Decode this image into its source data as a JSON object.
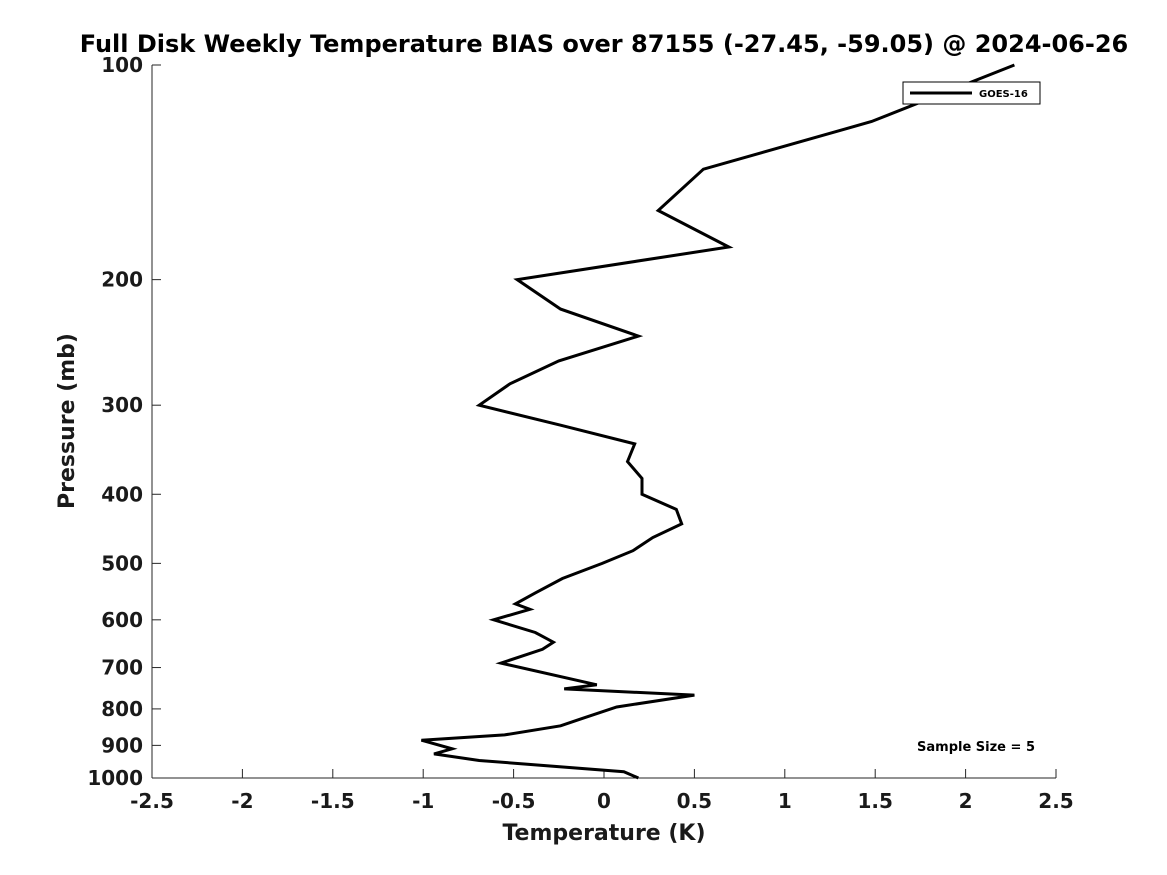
{
  "chart_data": {
    "type": "line",
    "title": "Full Disk Weekly Temperature BIAS over 87155 (-27.45, -59.05) @ 2024-06-26",
    "xlabel": "Temperature (K)",
    "ylabel": "Pressure (mb)",
    "xlim": [
      -2.5,
      2.5
    ],
    "ylim": [
      100,
      1000
    ],
    "yscale": "log",
    "y_reversed": true,
    "grid": false,
    "legend_position": "top-right",
    "x_ticks": [
      {
        "value": -2.5,
        "label": "-2.5"
      },
      {
        "value": -2,
        "label": "-2"
      },
      {
        "value": -1.5,
        "label": "-1.5"
      },
      {
        "value": -1,
        "label": "-1"
      },
      {
        "value": -0.5,
        "label": "-0.5"
      },
      {
        "value": 0,
        "label": "0"
      },
      {
        "value": 0.5,
        "label": "0.5"
      },
      {
        "value": 1,
        "label": "1"
      },
      {
        "value": 1.5,
        "label": "1.5"
      },
      {
        "value": 2,
        "label": "2"
      },
      {
        "value": 2.5,
        "label": "2.5"
      }
    ],
    "y_ticks": [
      {
        "value": 100,
        "label": "100"
      },
      {
        "value": 200,
        "label": "200"
      },
      {
        "value": 300,
        "label": "300"
      },
      {
        "value": 400,
        "label": "400"
      },
      {
        "value": 500,
        "label": "500"
      },
      {
        "value": 600,
        "label": "600"
      },
      {
        "value": 700,
        "label": "700"
      },
      {
        "value": 800,
        "label": "800"
      },
      {
        "value": 900,
        "label": "900"
      },
      {
        "value": 1000,
        "label": "1000"
      }
    ],
    "series": [
      {
        "name": "GOES-16",
        "color": "#000000",
        "points": [
          {
            "x": 2.27,
            "p": 100
          },
          {
            "x": 1.48,
            "p": 120
          },
          {
            "x": 0.55,
            "p": 140
          },
          {
            "x": 0.3,
            "p": 160
          },
          {
            "x": 0.69,
            "p": 180
          },
          {
            "x": -0.48,
            "p": 200
          },
          {
            "x": -0.24,
            "p": 220
          },
          {
            "x": 0.19,
            "p": 240
          },
          {
            "x": -0.25,
            "p": 260
          },
          {
            "x": -0.52,
            "p": 280
          },
          {
            "x": -0.69,
            "p": 300
          },
          {
            "x": -0.24,
            "p": 320
          },
          {
            "x": 0.17,
            "p": 340
          },
          {
            "x": 0.13,
            "p": 360
          },
          {
            "x": 0.21,
            "p": 380
          },
          {
            "x": 0.21,
            "p": 400
          },
          {
            "x": 0.4,
            "p": 420
          },
          {
            "x": 0.43,
            "p": 440
          },
          {
            "x": 0.27,
            "p": 460
          },
          {
            "x": 0.16,
            "p": 480
          },
          {
            "x": -0.01,
            "p": 500
          },
          {
            "x": -0.23,
            "p": 525
          },
          {
            "x": -0.38,
            "p": 550
          },
          {
            "x": -0.49,
            "p": 570
          },
          {
            "x": -0.41,
            "p": 580
          },
          {
            "x": -0.61,
            "p": 600
          },
          {
            "x": -0.38,
            "p": 625
          },
          {
            "x": -0.28,
            "p": 645
          },
          {
            "x": -0.34,
            "p": 660
          },
          {
            "x": -0.57,
            "p": 690
          },
          {
            "x": -0.04,
            "p": 740
          },
          {
            "x": -0.22,
            "p": 750
          },
          {
            "x": 0.5,
            "p": 765
          },
          {
            "x": 0.07,
            "p": 795
          },
          {
            "x": -0.12,
            "p": 825
          },
          {
            "x": -0.24,
            "p": 845
          },
          {
            "x": -0.55,
            "p": 870
          },
          {
            "x": -1.01,
            "p": 885
          },
          {
            "x": -0.84,
            "p": 910
          },
          {
            "x": -0.94,
            "p": 925
          },
          {
            "x": -0.69,
            "p": 945
          },
          {
            "x": 0.11,
            "p": 980
          },
          {
            "x": 0.19,
            "p": 1000
          }
        ]
      }
    ],
    "annotation": "Sample Size = 5"
  }
}
